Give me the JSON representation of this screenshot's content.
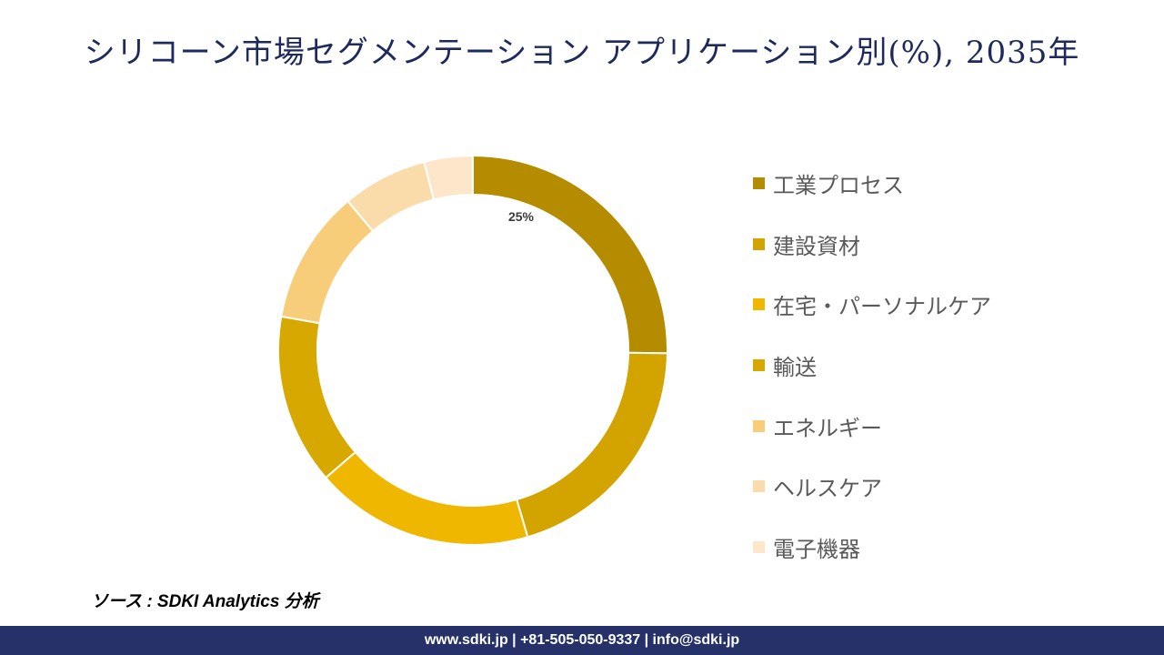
{
  "title": "シリコーン市場セグメンテーション アプリケーション別(%), 2035年",
  "chart_data": {
    "type": "pie",
    "variant": "donut",
    "title": "シリコーン市場セグメンテーション アプリケーション別(%), 2035年",
    "categories": [
      "工業プロセス",
      "建設資材",
      "在宅・パーソナルケア",
      "輸送",
      "エネルギー",
      "ヘルスケア",
      "電子機器"
    ],
    "values": [
      25,
      20,
      18,
      14,
      11,
      7,
      4
    ],
    "unit": "%",
    "colors": [
      "#b58c00",
      "#d3a300",
      "#efb700",
      "#d6a800",
      "#f7cd7a",
      "#fadcab",
      "#fde6c9"
    ],
    "data_labels": [
      "25%",
      "",
      "",
      "",
      "",
      "",
      ""
    ],
    "legend_position": "right"
  },
  "source": "ソース : SDKI Analytics 分析",
  "footer": "www.sdki.jp | +81-505-050-9337 | info@sdki.jp"
}
